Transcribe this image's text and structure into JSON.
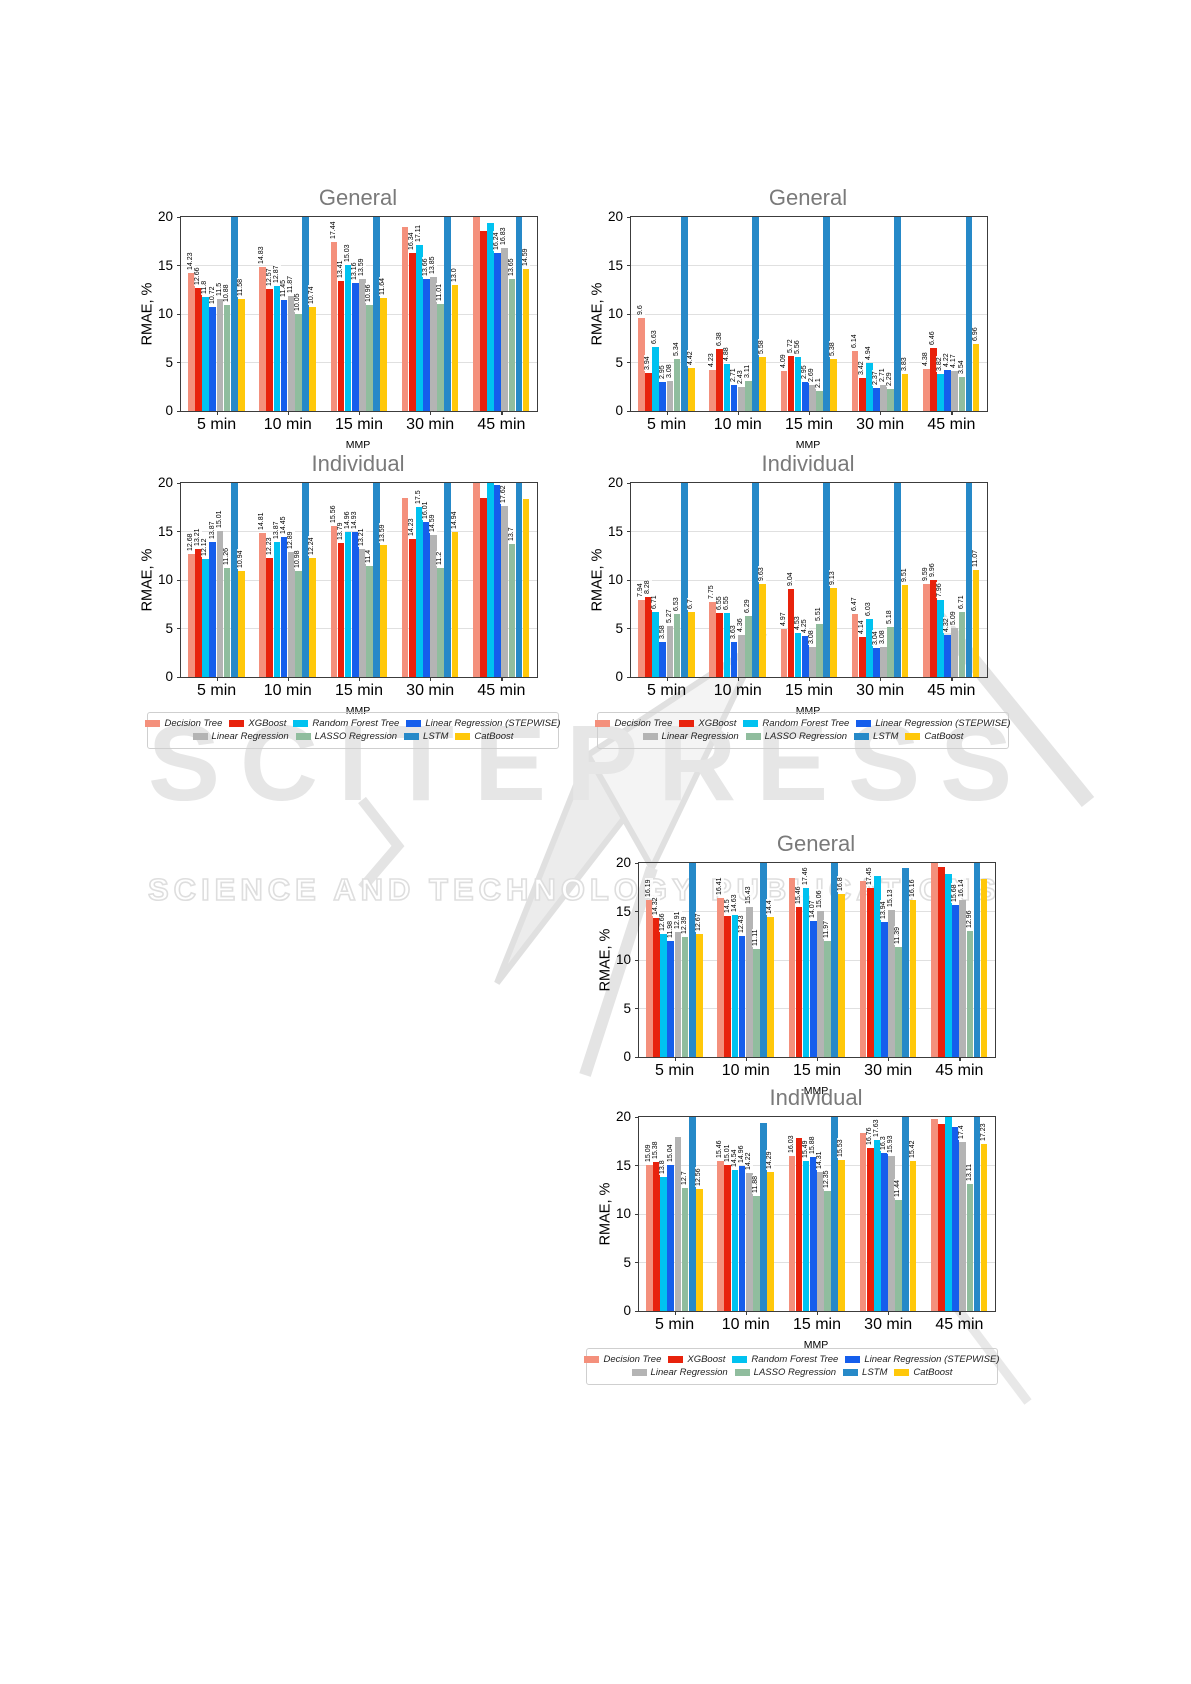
{
  "watermark": {
    "title": "SCITEPRESS",
    "subtitle": "SCIENCE AND TECHNOLOGY PUBLICATIONS"
  },
  "series": [
    {
      "name": "Decision Tree",
      "color": "#F4907C"
    },
    {
      "name": "XGBoost",
      "color": "#E8220C"
    },
    {
      "name": "Random Forest Tree",
      "color": "#00C2F0"
    },
    {
      "name": "Linear Regression (STEPWISE)",
      "color": "#155EEC"
    },
    {
      "name": "Linear Regression",
      "color": "#B4B4B4"
    },
    {
      "name": "LASSO Regression",
      "color": "#90BD9E"
    },
    {
      "name": "LSTM",
      "color": "#2689C8"
    },
    {
      "name": "CatBoost",
      "color": "#FFC80A"
    }
  ],
  "axes": {
    "ylabel": "RMAE, %",
    "xlabel": "MMP",
    "yticks": [
      0,
      5,
      10,
      15,
      20
    ],
    "ylim": [
      0,
      20
    ],
    "categories": [
      "5 min",
      "10 min",
      "15 min",
      "30 min",
      "45 min"
    ]
  },
  "chart_data": [
    {
      "type": "bar",
      "title": "General",
      "panel": "top-left",
      "categories": [
        "5 min",
        "10 min",
        "15 min",
        "30 min",
        "45 min"
      ],
      "ylabel": "RMAE, %",
      "xlabel": "MMP",
      "ylim": [
        0,
        20
      ],
      "series": [
        {
          "name": "Decision Tree",
          "values": [
            14.23,
            14.83,
            17.44,
            19.0,
            20.5
          ],
          "labels": [
            "14.23",
            "14.83",
            "17.44",
            null,
            null
          ]
        },
        {
          "name": "XGBoost",
          "values": [
            12.66,
            12.57,
            13.41,
            16.34,
            18.6
          ],
          "labels": [
            "12.66",
            "12.57",
            "13.41",
            "16.34",
            null
          ]
        },
        {
          "name": "Random Forest Tree",
          "values": [
            11.8,
            12.87,
            15.03,
            17.11,
            19.4
          ],
          "labels": [
            "11.8",
            "12.87",
            "15.03",
            "17.11",
            null
          ]
        },
        {
          "name": "Linear Regression (STEPWISE)",
          "values": [
            10.72,
            11.45,
            13.16,
            13.66,
            16.24
          ],
          "labels": [
            "10.72",
            "11.45",
            "13.16",
            "13.66",
            "16.24"
          ]
        },
        {
          "name": "Linear Regression",
          "values": [
            11.5,
            11.87,
            13.59,
            13.85,
            16.83
          ],
          "labels": [
            "11.5",
            "11.87",
            "13.59",
            "13.85",
            "16.83"
          ]
        },
        {
          "name": "LASSO Regression",
          "values": [
            10.88,
            10.05,
            10.96,
            11.01,
            13.65
          ],
          "labels": [
            "10.88",
            "10.05",
            "10.96",
            "11.01",
            "13.65"
          ]
        },
        {
          "name": "LSTM",
          "values": [
            22,
            22,
            22,
            22,
            22
          ],
          "labels": [
            null,
            null,
            null,
            null,
            null
          ]
        },
        {
          "name": "CatBoost",
          "values": [
            11.58,
            10.74,
            11.64,
            13.0,
            14.59
          ],
          "labels": [
            "11.58",
            "10.74",
            "11.64",
            "13.0",
            "14.59"
          ]
        }
      ]
    },
    {
      "type": "bar",
      "title": "General",
      "panel": "top-right",
      "categories": [
        "5 min",
        "10 min",
        "15 min",
        "30 min",
        "45 min"
      ],
      "ylabel": "RMAE, %",
      "xlabel": "MMP",
      "ylim": [
        0,
        20
      ],
      "series": [
        {
          "name": "Decision Tree",
          "values": [
            9.6,
            4.23,
            4.09,
            6.14,
            4.38
          ],
          "labels": [
            "9.6",
            "4.23",
            "4.09",
            "6.14",
            "4.38"
          ]
        },
        {
          "name": "XGBoost",
          "values": [
            3.94,
            6.38,
            5.72,
            3.42,
            6.46
          ],
          "labels": [
            "3.94",
            "6.38",
            "5.72",
            "3.42",
            "6.46"
          ]
        },
        {
          "name": "Random Forest Tree",
          "values": [
            6.63,
            4.88,
            5.56,
            4.94,
            3.82
          ],
          "labels": [
            "6.63",
            "4.88",
            "5.56",
            "4.94",
            "3.82"
          ]
        },
        {
          "name": "Linear Regression (STEPWISE)",
          "values": [
            2.95,
            2.71,
            2.95,
            2.37,
            4.22
          ],
          "labels": [
            "2.95",
            "2.71",
            "2.95",
            "2.37",
            "4.22"
          ]
        },
        {
          "name": "Linear Regression",
          "values": [
            3.08,
            2.43,
            2.69,
            2.71,
            4.17
          ],
          "labels": [
            "3.08",
            "2.43",
            "2.69",
            "2.71",
            "4.17"
          ]
        },
        {
          "name": "LASSO Regression",
          "values": [
            5.34,
            3.11,
            2.1,
            2.29,
            3.54
          ],
          "labels": [
            "5.34",
            "3.11",
            "2.1",
            "2.29",
            "3.54"
          ]
        },
        {
          "name": "LSTM",
          "values": [
            22,
            22,
            22,
            22,
            22
          ],
          "labels": [
            null,
            null,
            null,
            null,
            null
          ]
        },
        {
          "name": "CatBoost",
          "values": [
            4.42,
            5.58,
            5.38,
            3.83,
            6.96
          ],
          "labels": [
            "4.42",
            "5.58",
            "5.38",
            "3.83",
            "6.96"
          ]
        }
      ]
    },
    {
      "type": "bar",
      "title": "Individual",
      "panel": "mid-left",
      "categories": [
        "5 min",
        "10 min",
        "15 min",
        "30 min",
        "45 min"
      ],
      "ylabel": "RMAE, %",
      "xlabel": "MMP",
      "ylim": [
        0,
        20
      ],
      "series": [
        {
          "name": "Decision Tree",
          "values": [
            12.68,
            14.81,
            15.56,
            18.5,
            20.5
          ],
          "labels": [
            "12.68",
            "14.81",
            "15.56",
            null,
            null
          ]
        },
        {
          "name": "XGBoost",
          "values": [
            13.21,
            12.23,
            13.79,
            14.23,
            18.5
          ],
          "labels": [
            "13.21",
            "12.23",
            "13.79",
            "14.23",
            null
          ]
        },
        {
          "name": "Random Forest Tree",
          "values": [
            12.12,
            13.87,
            14.96,
            17.5,
            20.3
          ],
          "labels": [
            "12.12",
            "13.87",
            "14.96",
            "17.5",
            null
          ]
        },
        {
          "name": "Linear Regression (STEPWISE)",
          "values": [
            13.87,
            14.45,
            14.93,
            16.01,
            19.8
          ],
          "labels": [
            "13.87",
            "14.45",
            "14.93",
            "16.01",
            null
          ]
        },
        {
          "name": "Linear Regression",
          "values": [
            15.01,
            12.89,
            13.21,
            14.59,
            17.62
          ],
          "labels": [
            "15.01",
            "12.89",
            "13.21",
            "14.59",
            "17.62"
          ]
        },
        {
          "name": "LASSO Regression",
          "values": [
            11.26,
            10.98,
            11.4,
            11.2,
            13.7
          ],
          "labels": [
            "11.26",
            "10.98",
            "11.4",
            "11.2",
            "13.7"
          ]
        },
        {
          "name": "LSTM",
          "values": [
            22,
            22,
            22,
            22,
            22
          ],
          "labels": [
            null,
            null,
            null,
            null,
            null
          ]
        },
        {
          "name": "CatBoost",
          "values": [
            10.94,
            12.24,
            13.59,
            14.94,
            18.4
          ],
          "labels": [
            "10.94",
            "12.24",
            "13.59",
            "14.94",
            null
          ]
        }
      ]
    },
    {
      "type": "bar",
      "title": "Individual",
      "panel": "mid-right",
      "categories": [
        "5 min",
        "10 min",
        "15 min",
        "30 min",
        "45 min"
      ],
      "ylabel": "RMAE, %",
      "xlabel": "MMP",
      "ylim": [
        0,
        20
      ],
      "series": [
        {
          "name": "Decision Tree",
          "values": [
            7.94,
            7.75,
            4.97,
            6.47,
            9.59
          ],
          "labels": [
            "7.94",
            "7.75",
            "4.97",
            "6.47",
            "9.59"
          ]
        },
        {
          "name": "XGBoost",
          "values": [
            8.28,
            6.55,
            9.04,
            4.14,
            9.96
          ],
          "labels": [
            "8.28",
            "6.55",
            "9.04",
            "4.14",
            "9.96"
          ]
        },
        {
          "name": "Random Forest Tree",
          "values": [
            6.71,
            6.55,
            4.53,
            6.03,
            7.96
          ],
          "labels": [
            "6.71",
            "6.55",
            "4.53",
            "6.03",
            "7.96"
          ]
        },
        {
          "name": "Linear Regression (STEPWISE)",
          "values": [
            3.58,
            3.63,
            4.25,
            3.04,
            4.32
          ],
          "labels": [
            "3.58",
            "3.63",
            "4.25",
            "3.04",
            "4.32"
          ]
        },
        {
          "name": "Linear Regression",
          "values": [
            5.27,
            4.36,
            3.08,
            3.08,
            5.09
          ],
          "labels": [
            "5.27",
            "4.36",
            "3.08",
            "3.08",
            "5.09"
          ]
        },
        {
          "name": "LASSO Regression",
          "values": [
            6.53,
            6.29,
            5.51,
            5.18,
            6.71
          ],
          "labels": [
            "6.53",
            "6.29",
            "5.51",
            "5.18",
            "6.71"
          ]
        },
        {
          "name": "LSTM",
          "values": [
            22,
            22,
            22,
            22,
            22
          ],
          "labels": [
            null,
            null,
            null,
            null,
            null
          ]
        },
        {
          "name": "CatBoost",
          "values": [
            6.7,
            9.63,
            9.13,
            9.51,
            11.07
          ],
          "labels": [
            "6.7",
            "9.63",
            "9.13",
            "9.51",
            "11.07"
          ]
        }
      ]
    },
    {
      "type": "bar",
      "title": "General",
      "panel": "bottom-upper",
      "categories": [
        "5 min",
        "10 min",
        "15 min",
        "30 min",
        "45 min"
      ],
      "ylabel": "RMAE, %",
      "xlabel": "MMP",
      "ylim": [
        0,
        20
      ],
      "series": [
        {
          "name": "Decision Tree",
          "values": [
            16.19,
            16.41,
            18.5,
            18.1,
            20.3
          ],
          "labels": [
            "16.19",
            "16.41",
            null,
            null,
            null
          ]
        },
        {
          "name": "XGBoost",
          "values": [
            14.32,
            14.5,
            15.46,
            17.45,
            19.6
          ],
          "labels": [
            "14.32",
            "14.5",
            "15.46",
            "17.45",
            null
          ]
        },
        {
          "name": "Random Forest Tree",
          "values": [
            12.66,
            14.63,
            17.46,
            18.7,
            18.9
          ],
          "labels": [
            "12.66",
            "14.63",
            "17.46",
            null,
            null
          ]
        },
        {
          "name": "Linear Regression (STEPWISE)",
          "values": [
            11.98,
            12.43,
            14.07,
            13.94,
            15.68
          ],
          "labels": [
            "11.98",
            "12.43",
            "14.07",
            "13.94",
            "15.68"
          ]
        },
        {
          "name": "Linear Regression",
          "values": [
            12.91,
            15.43,
            15.06,
            15.13,
            16.14
          ],
          "labels": [
            "12.91",
            "15.43",
            "15.06",
            "15.13",
            "16.14"
          ]
        },
        {
          "name": "LASSO Regression",
          "values": [
            12.39,
            11.11,
            11.97,
            11.39,
            12.96
          ],
          "labels": [
            "12.39",
            "11.11",
            "11.97",
            "11.39",
            "12.96"
          ]
        },
        {
          "name": "LSTM",
          "values": [
            22,
            22,
            22,
            19.45,
            22
          ],
          "labels": [
            null,
            null,
            null,
            null,
            null
          ]
        },
        {
          "name": "CatBoost",
          "values": [
            12.67,
            14.4,
            16.8,
            16.16,
            18.4
          ],
          "labels": [
            "12.67",
            "14.4",
            "16.8",
            "16.16",
            null
          ]
        }
      ]
    },
    {
      "type": "bar",
      "title": "Individual",
      "panel": "bottom-lower",
      "categories": [
        "5 min",
        "10 min",
        "15 min",
        "30 min",
        "45 min"
      ],
      "ylabel": "RMAE, %",
      "xlabel": "MMP",
      "ylim": [
        0,
        20
      ],
      "series": [
        {
          "name": "Decision Tree",
          "values": [
            15.09,
            15.46,
            16.03,
            18.4,
            19.8
          ],
          "labels": [
            "15.09",
            "15.46",
            "16.03",
            null,
            null
          ]
        },
        {
          "name": "XGBoost",
          "values": [
            15.38,
            15.01,
            17.8,
            16.76,
            19.3
          ],
          "labels": [
            "15.38",
            "15.01",
            null,
            "16.76",
            null
          ]
        },
        {
          "name": "Random Forest Tree",
          "values": [
            13.8,
            14.54,
            15.49,
            17.63,
            20.3
          ],
          "labels": [
            "13.8",
            "14.54",
            "15.49",
            "17.63",
            null
          ]
        },
        {
          "name": "Linear Regression (STEPWISE)",
          "values": [
            15.04,
            14.96,
            15.88,
            16.3,
            19.0
          ],
          "labels": [
            "15.04",
            "14.96",
            "15.88",
            "16.3",
            null
          ]
        },
        {
          "name": "Linear Regression",
          "values": [
            17.9,
            14.22,
            14.31,
            15.93,
            17.4
          ],
          "labels": [
            null,
            "14.22",
            "14.31",
            "15.93",
            "17.4"
          ]
        },
        {
          "name": "LASSO Regression",
          "values": [
            12.7,
            11.88,
            12.35,
            11.44,
            13.11
          ],
          "labels": [
            "12.7",
            "11.88",
            "12.35",
            "11.44",
            "13.11"
          ]
        },
        {
          "name": "LSTM",
          "values": [
            22,
            19.4,
            22,
            22,
            22
          ],
          "labels": [
            null,
            null,
            null,
            null,
            null
          ]
        },
        {
          "name": "CatBoost",
          "values": [
            12.56,
            14.29,
            15.53,
            15.42,
            17.23
          ],
          "labels": [
            "12.56",
            "14.29",
            "15.53",
            "15.42",
            "17.23"
          ]
        }
      ]
    }
  ]
}
